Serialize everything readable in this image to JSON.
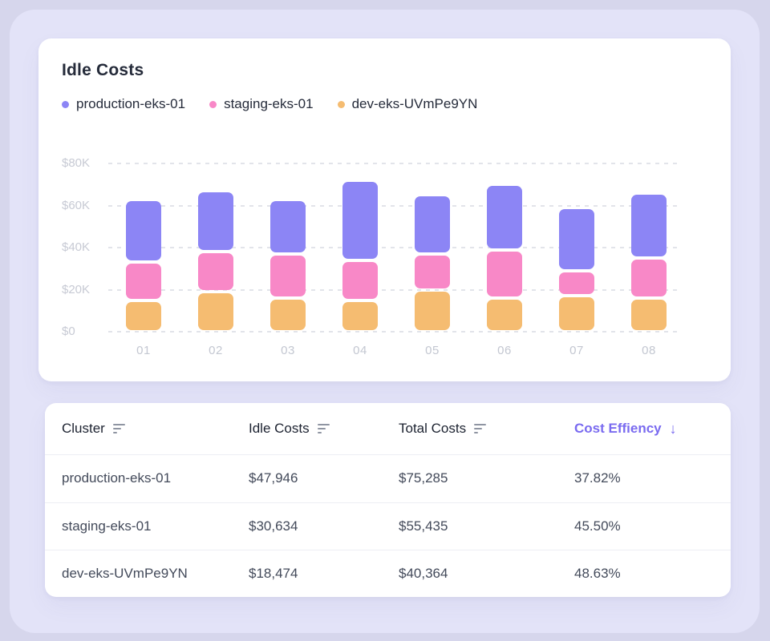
{
  "chart_card": {
    "title": "Idle Costs",
    "legend": [
      {
        "label": "production-eks-01",
        "color": "#8c85f5"
      },
      {
        "label": "staging-eks-01",
        "color": "#f888c7"
      },
      {
        "label": "dev-eks-UVmPe9YN",
        "color": "#f5bc71"
      }
    ]
  },
  "chart_data": {
    "type": "bar",
    "stacked": true,
    "title": "Idle Costs",
    "categories": [
      "01",
      "02",
      "03",
      "04",
      "05",
      "06",
      "07",
      "08"
    ],
    "series": [
      {
        "name": "dev-eks-UVmPe9YN",
        "color": "#f5bc71",
        "values": [
          15,
          19,
          16,
          15,
          20,
          16,
          17,
          16
        ]
      },
      {
        "name": "staging-eks-01",
        "color": "#f888c7",
        "values": [
          18,
          19,
          21,
          19,
          17,
          23,
          12,
          19
        ]
      },
      {
        "name": "production-eks-01",
        "color": "#8c85f5",
        "values": [
          30,
          29,
          26,
          38,
          28,
          31,
          30,
          31
        ]
      }
    ],
    "value_unit": "thousand USD",
    "ylim": [
      0,
      80
    ],
    "yticks": [
      {
        "value": 0,
        "label": "$0"
      },
      {
        "value": 20,
        "label": "$20K"
      },
      {
        "value": 40,
        "label": "$40K"
      },
      {
        "value": 60,
        "label": "$60K"
      },
      {
        "value": 80,
        "label": "$80K"
      }
    ],
    "grid": "horizontal-dashed",
    "legend_position": "top-left"
  },
  "table": {
    "columns": [
      {
        "label": "Cluster",
        "icon": "sort-lines"
      },
      {
        "label": "Idle Costs",
        "icon": "sort-lines"
      },
      {
        "label": "Total Costs",
        "icon": "sort-lines"
      },
      {
        "label": "Cost Effiency",
        "icon": "arrow-down",
        "active": true,
        "arrow_glyph": "↓"
      }
    ],
    "rows": [
      {
        "cluster": "production-eks-01",
        "idle_costs": "$47,946",
        "total_costs": "$75,285",
        "cost_effiency": "37.82%"
      },
      {
        "cluster": "staging-eks-01",
        "idle_costs": "$30,634",
        "total_costs": "$55,435",
        "cost_effiency": "45.50%"
      },
      {
        "cluster": "dev-eks-UVmPe9YN",
        "idle_costs": "$18,474",
        "total_costs": "$40,364",
        "cost_effiency": "48.63%"
      }
    ]
  },
  "colors": {
    "page_bg": "#d6d6ec",
    "frame_bg": "#e3e3f8",
    "card_bg": "#ffffff",
    "accent_purple": "#7a6bf0",
    "grid_line": "#e2e4ea",
    "axis_label": "#c7cad4",
    "text_dark": "#252b3a",
    "text_row": "#434a5a",
    "separator": "#edeef4"
  }
}
